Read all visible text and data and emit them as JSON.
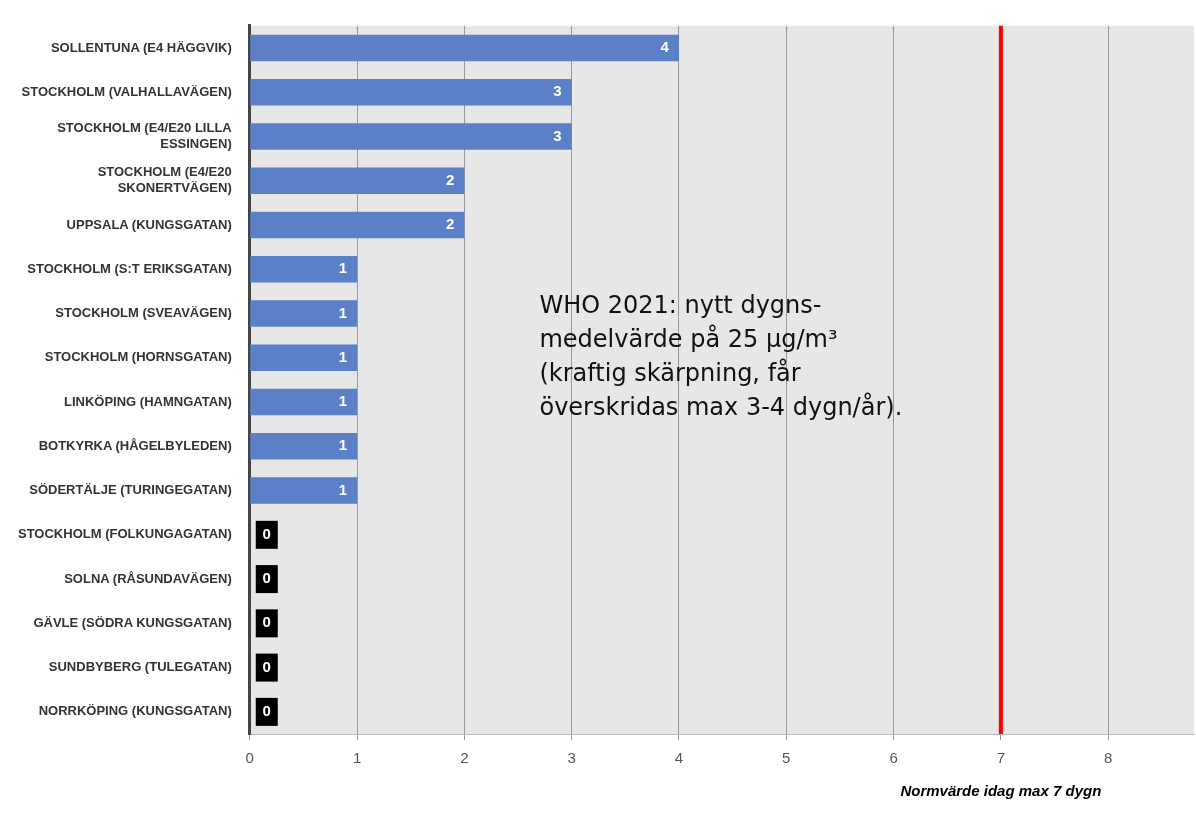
{
  "chart_data": {
    "type": "bar",
    "orientation": "horizontal",
    "categories": [
      "SOLLENTUNA (E4 HÄGGVIK)",
      "STOCKHOLM (VALHALLAVÄGEN)",
      "STOCKHOLM (E4/E20 LILLA ESSINGEN)",
      "STOCKHOLM (E4/E20 SKONERTVÄGEN)",
      "UPPSALA (KUNGSGATAN)",
      "STOCKHOLM (S:T ERIKSGATAN)",
      "STOCKHOLM (SVEAVÄGEN)",
      "STOCKHOLM (HORNSGATAN)",
      "LINKÖPING (HAMNGATAN)",
      "BOTKYRKA (HÅGELBYLEDEN)",
      "SÖDERTÄLJE (TURINGEGATAN)",
      "STOCKHOLM (FOLKUNGAGATAN)",
      "SOLNA (RÅSUNDAVÄGEN)",
      "GÄVLE (SÖDRA KUNGSGATAN)",
      "SUNDBYBERG (TULEGATAN)",
      "NORRKÖPING (KUNGSGATAN)"
    ],
    "values": [
      4,
      3,
      3,
      2,
      2,
      1,
      1,
      1,
      1,
      1,
      1,
      0,
      0,
      0,
      0,
      0
    ],
    "color": "#5b80c8",
    "xlim": [
      0,
      8.8
    ],
    "xticks": [
      0,
      1,
      2,
      3,
      4,
      5,
      6,
      7,
      8
    ],
    "grid": "x",
    "legend": false,
    "data_labels": true,
    "xlabel": "Normvärde idag max 7 dygn",
    "ref_lines": [
      {
        "axis": "x",
        "value": 7,
        "color": "#ff0000"
      }
    ],
    "annotations": [
      "WHO 2021: nytt dygns-medelvärde på 25 µg/m³ (kraftig skärpning, får överskridas max 3-4 dygn/år)."
    ]
  }
}
